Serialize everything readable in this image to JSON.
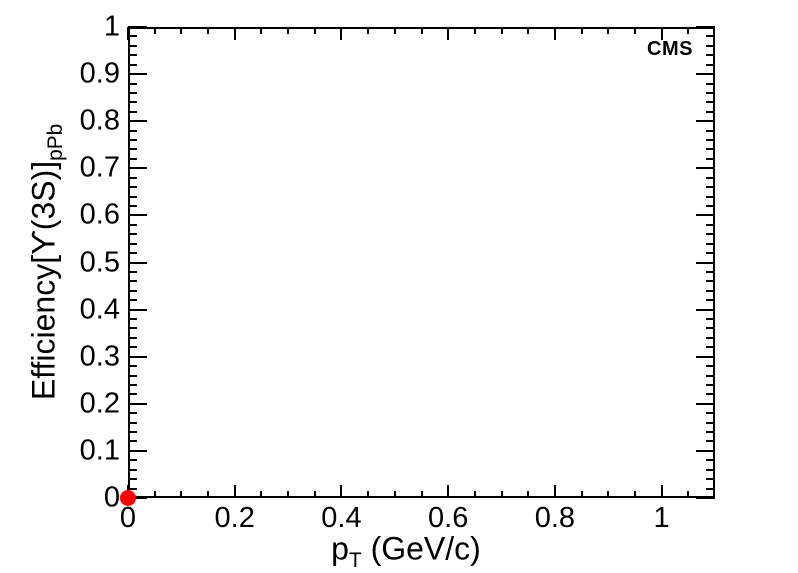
{
  "chart_data": {
    "type": "scatter",
    "title": "",
    "xlabel": {
      "base": "p",
      "sub": "T",
      "suffix": " (GeV/c)"
    },
    "ylabel": {
      "base": "Efficiency[ϒ(3S)]",
      "sub": "pPb"
    },
    "xlim": [
      0,
      1.1
    ],
    "ylim": [
      0,
      1
    ],
    "xticks": {
      "major": [
        0,
        0.2,
        0.4,
        0.6,
        0.8,
        1
      ],
      "labels": [
        "0",
        "0.2",
        "0.4",
        "0.6",
        "0.8",
        "1"
      ],
      "minor_step": 0.05
    },
    "yticks": {
      "major": [
        0,
        0.1,
        0.2,
        0.3,
        0.4,
        0.5,
        0.6,
        0.7,
        0.8,
        0.9,
        1
      ],
      "labels": [
        "0",
        "0.1",
        "0.2",
        "0.3",
        "0.4",
        "0.5",
        "0.6",
        "0.7",
        "0.8",
        "0.9",
        "1"
      ],
      "minor_step": 0.02
    },
    "grid": false,
    "legend": false,
    "axis_color": "#000000",
    "background_color": "#ffffff",
    "series": [
      {
        "name": "efficiency-points",
        "marker": "filled-circle",
        "color": "#ff0000",
        "points": [
          {
            "x": 0,
            "y": 0
          }
        ]
      }
    ],
    "annotations": [
      {
        "text": "CMS",
        "position": "top-right",
        "bold": true
      }
    ]
  }
}
